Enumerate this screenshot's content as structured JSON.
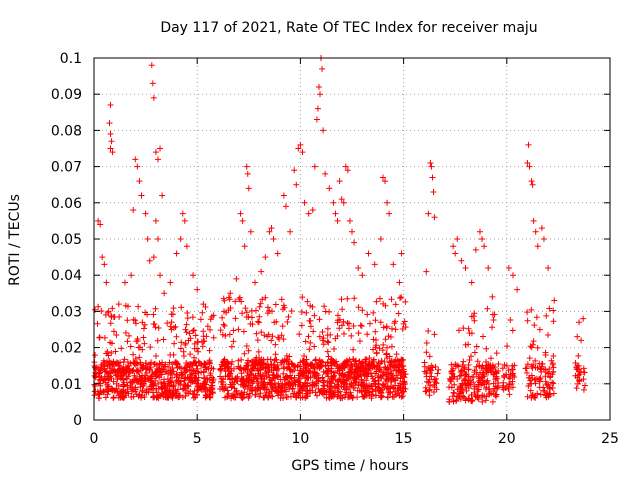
{
  "chart_data": {
    "type": "scatter",
    "title": "Day 117 of 2021, Rate Of TEC Index for receiver maju",
    "xlabel": "GPS time / hours",
    "ylabel": "ROTI / TECUs",
    "xlim": [
      0,
      25
    ],
    "ylim": [
      0,
      0.1
    ],
    "x_ticks": [
      0,
      5,
      10,
      15,
      20,
      25
    ],
    "y_ticks": [
      0,
      0.01,
      0.02,
      0.03,
      0.04,
      0.05,
      0.06,
      0.07,
      0.08,
      0.09,
      0.1
    ],
    "x_tick_labels": [
      "0",
      "5",
      "10",
      "15",
      "20",
      "25"
    ],
    "y_tick_labels": [
      "0",
      "0.01",
      "0.02",
      "0.03",
      "0.04",
      "0.05",
      "0.06",
      "0.07",
      "0.08",
      "0.09",
      "0.1"
    ],
    "grid": true,
    "marker": "+",
    "series_color": "#ff0000",
    "series": [
      {
        "name": "ROTI",
        "points": [
          [
            0.1,
            0.012
          ],
          [
            0.2,
            0.055
          ],
          [
            0.3,
            0.054
          ],
          [
            0.4,
            0.045
          ],
          [
            0.5,
            0.043
          ],
          [
            0.6,
            0.038
          ],
          [
            0.7,
            0.03
          ],
          [
            0.8,
            0.087
          ],
          [
            0.75,
            0.082
          ],
          [
            0.8,
            0.079
          ],
          [
            0.85,
            0.077
          ],
          [
            0.8,
            0.075
          ],
          [
            0.9,
            0.074
          ],
          [
            1.2,
            0.032
          ],
          [
            1.5,
            0.038
          ],
          [
            1.8,
            0.04
          ],
          [
            1.9,
            0.058
          ],
          [
            2.0,
            0.072
          ],
          [
            2.1,
            0.07
          ],
          [
            2.2,
            0.066
          ],
          [
            2.3,
            0.062
          ],
          [
            2.5,
            0.057
          ],
          [
            2.6,
            0.05
          ],
          [
            2.7,
            0.044
          ],
          [
            2.8,
            0.098
          ],
          [
            2.85,
            0.093
          ],
          [
            2.9,
            0.089
          ],
          [
            3.0,
            0.074
          ],
          [
            3.1,
            0.072
          ],
          [
            3.2,
            0.075
          ],
          [
            3.3,
            0.062
          ],
          [
            3.0,
            0.055
          ],
          [
            3.1,
            0.05
          ],
          [
            2.9,
            0.045
          ],
          [
            3.2,
            0.04
          ],
          [
            3.4,
            0.035
          ],
          [
            3.7,
            0.038
          ],
          [
            4.0,
            0.046
          ],
          [
            4.2,
            0.05
          ],
          [
            4.3,
            0.057
          ],
          [
            4.4,
            0.055
          ],
          [
            4.5,
            0.048
          ],
          [
            4.8,
            0.04
          ],
          [
            5.0,
            0.036
          ],
          [
            5.3,
            0.032
          ],
          [
            6.3,
            0.03
          ],
          [
            6.6,
            0.035
          ],
          [
            6.9,
            0.039
          ],
          [
            7.1,
            0.057
          ],
          [
            7.2,
            0.055
          ],
          [
            7.3,
            0.048
          ],
          [
            7.4,
            0.07
          ],
          [
            7.45,
            0.068
          ],
          [
            7.5,
            0.064
          ],
          [
            7.6,
            0.052
          ],
          [
            7.8,
            0.038
          ],
          [
            8.1,
            0.041
          ],
          [
            8.3,
            0.045
          ],
          [
            8.5,
            0.052
          ],
          [
            8.6,
            0.053
          ],
          [
            8.7,
            0.05
          ],
          [
            8.9,
            0.046
          ],
          [
            9.2,
            0.062
          ],
          [
            9.3,
            0.059
          ],
          [
            9.5,
            0.052
          ],
          [
            9.7,
            0.069
          ],
          [
            9.8,
            0.065
          ],
          [
            9.9,
            0.075
          ],
          [
            10.0,
            0.076
          ],
          [
            10.1,
            0.074
          ],
          [
            10.2,
            0.06
          ],
          [
            10.4,
            0.057
          ],
          [
            10.6,
            0.058
          ],
          [
            10.7,
            0.07
          ],
          [
            10.8,
            0.083
          ],
          [
            10.85,
            0.086
          ],
          [
            10.9,
            0.092
          ],
          [
            10.95,
            0.09
          ],
          [
            11.0,
            0.1
          ],
          [
            11.05,
            0.097
          ],
          [
            11.1,
            0.08
          ],
          [
            11.2,
            0.068
          ],
          [
            11.4,
            0.064
          ],
          [
            11.6,
            0.06
          ],
          [
            11.7,
            0.057
          ],
          [
            11.8,
            0.055
          ],
          [
            11.9,
            0.066
          ],
          [
            12.0,
            0.061
          ],
          [
            12.1,
            0.06
          ],
          [
            12.2,
            0.07
          ],
          [
            12.3,
            0.069
          ],
          [
            12.4,
            0.055
          ],
          [
            12.5,
            0.052
          ],
          [
            12.6,
            0.049
          ],
          [
            12.8,
            0.042
          ],
          [
            13.0,
            0.04
          ],
          [
            13.3,
            0.046
          ],
          [
            13.6,
            0.043
          ],
          [
            13.9,
            0.05
          ],
          [
            14.0,
            0.067
          ],
          [
            14.1,
            0.066
          ],
          [
            14.2,
            0.06
          ],
          [
            14.3,
            0.057
          ],
          [
            14.5,
            0.043
          ],
          [
            14.8,
            0.038
          ],
          [
            14.9,
            0.046
          ],
          [
            16.1,
            0.041
          ],
          [
            16.2,
            0.057
          ],
          [
            16.3,
            0.071
          ],
          [
            16.35,
            0.07
          ],
          [
            16.4,
            0.067
          ],
          [
            16.45,
            0.063
          ],
          [
            16.5,
            0.056
          ],
          [
            17.4,
            0.048
          ],
          [
            17.5,
            0.046
          ],
          [
            17.6,
            0.05
          ],
          [
            17.8,
            0.044
          ],
          [
            18.0,
            0.042
          ],
          [
            18.3,
            0.038
          ],
          [
            18.5,
            0.047
          ],
          [
            18.7,
            0.052
          ],
          [
            18.8,
            0.05
          ],
          [
            18.9,
            0.048
          ],
          [
            19.1,
            0.042
          ],
          [
            19.3,
            0.034
          ],
          [
            20.1,
            0.042
          ],
          [
            20.3,
            0.04
          ],
          [
            20.5,
            0.036
          ],
          [
            21.0,
            0.071
          ],
          [
            21.05,
            0.076
          ],
          [
            21.1,
            0.07
          ],
          [
            21.2,
            0.066
          ],
          [
            21.25,
            0.065
          ],
          [
            21.3,
            0.055
          ],
          [
            21.4,
            0.052
          ],
          [
            21.5,
            0.048
          ],
          [
            21.7,
            0.053
          ],
          [
            21.8,
            0.05
          ],
          [
            22.0,
            0.042
          ],
          [
            22.3,
            0.033
          ],
          [
            23.5,
            0.027
          ],
          [
            23.6,
            0.022
          ],
          [
            23.7,
            0.028
          ]
        ]
      }
    ],
    "dense_segments": [
      {
        "x_start": 0.0,
        "x_end": 5.8,
        "y_low": 0.003,
        "y_high": 0.032,
        "density": 6.0
      },
      {
        "x_start": 6.1,
        "x_end": 15.1,
        "y_low": 0.003,
        "y_high": 0.034,
        "density": 6.5
      },
      {
        "x_start": 16.0,
        "x_end": 16.7,
        "y_low": 0.003,
        "y_high": 0.029,
        "density": 3.0
      },
      {
        "x_start": 17.2,
        "x_end": 19.6,
        "y_low": 0.002,
        "y_high": 0.032,
        "density": 4.5
      },
      {
        "x_start": 19.8,
        "x_end": 20.4,
        "y_low": 0.004,
        "y_high": 0.028,
        "density": 3.0
      },
      {
        "x_start": 20.9,
        "x_end": 22.3,
        "y_low": 0.003,
        "y_high": 0.031,
        "density": 3.5
      },
      {
        "x_start": 23.3,
        "x_end": 23.8,
        "y_low": 0.005,
        "y_high": 0.027,
        "density": 2.5
      }
    ]
  }
}
